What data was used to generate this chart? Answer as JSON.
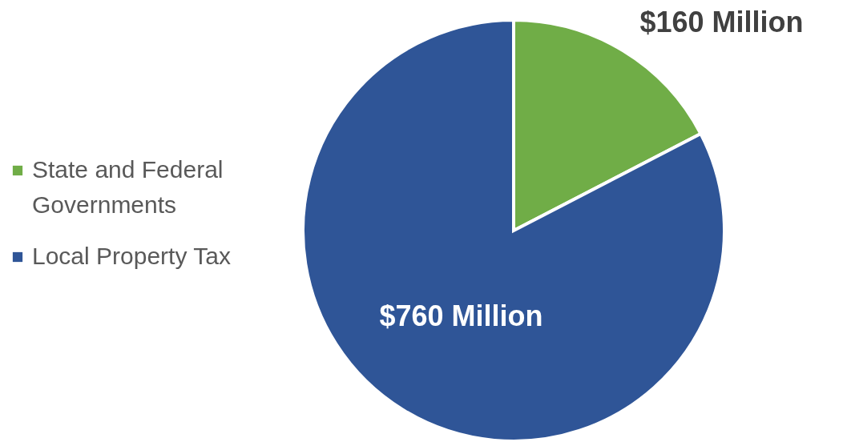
{
  "chart_data": {
    "type": "pie",
    "categories": [
      "State and Federal Governments",
      "Local Property Tax"
    ],
    "values": [
      160,
      760
    ],
    "colors": [
      "#70ad47",
      "#2f5597"
    ],
    "value_labels": [
      "$160 Million",
      "$760 Million"
    ],
    "legend": "left"
  }
}
